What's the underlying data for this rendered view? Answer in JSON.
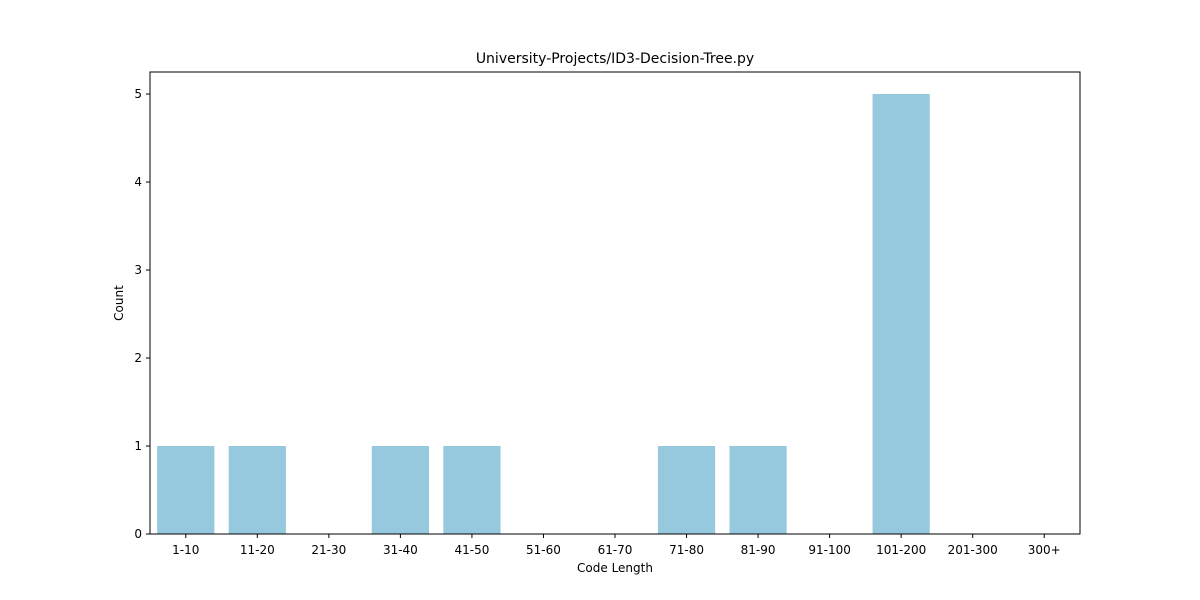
{
  "chart_data": {
    "type": "bar",
    "title": "University-Projects/ID3-Decision-Tree.py",
    "xlabel": "Code Length",
    "ylabel": "Count",
    "categories": [
      "1-10",
      "11-20",
      "21-30",
      "31-40",
      "41-50",
      "51-60",
      "61-70",
      "71-80",
      "81-90",
      "91-100",
      "101-200",
      "201-300",
      "300+"
    ],
    "values": [
      1,
      1,
      0,
      1,
      1,
      0,
      0,
      1,
      1,
      0,
      5,
      0,
      0
    ],
    "ylim": [
      0,
      5.25
    ],
    "yticks": [
      "0",
      "1",
      "2",
      "3",
      "4",
      "5"
    ],
    "bar_color": "#96c9de",
    "grid": false,
    "legend": "none"
  }
}
